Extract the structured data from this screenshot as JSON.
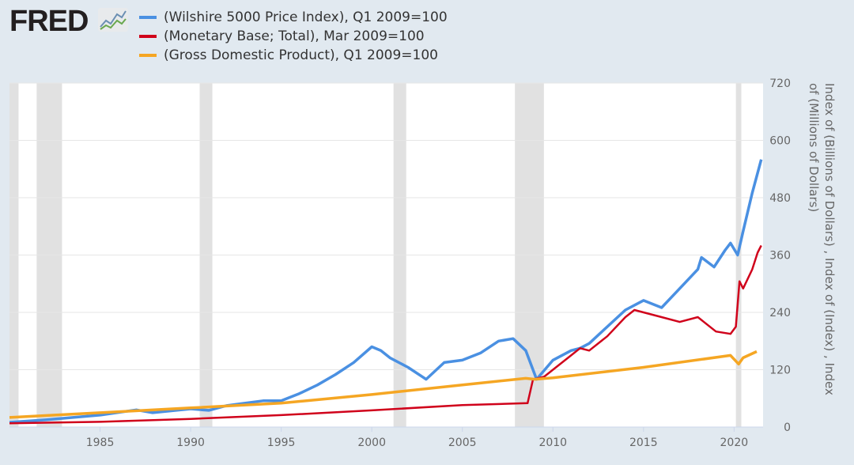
{
  "logo": "FRED",
  "chart_data": {
    "type": "line",
    "title": "",
    "ylabel": "Index of (Billions of Dollars) , Index of (Index) , Index of (Millions of Dollars)",
    "xlim": [
      1980,
      2021.6
    ],
    "ylim": [
      0,
      720
    ],
    "yticks": [
      0,
      120,
      240,
      360,
      480,
      600,
      720
    ],
    "xticks": [
      1985,
      1990,
      1995,
      2000,
      2005,
      2010,
      2015,
      2020
    ],
    "grid": true,
    "legend_position": "top-left",
    "recessions": [
      [
        1980.0,
        1980.5
      ],
      [
        1981.5,
        1982.9
      ],
      [
        1990.5,
        1991.2
      ],
      [
        2001.2,
        2001.9
      ],
      [
        2007.9,
        2009.5
      ],
      [
        2020.1,
        2020.4
      ]
    ],
    "series": [
      {
        "name": "(Wilshire 5000 Price Index), Q1 2009=100",
        "color": "#4a90e2",
        "x": [
          1980,
          1982,
          1985,
          1987,
          1987.9,
          1990,
          1991,
          1992,
          1994,
          1995,
          1996,
          1997,
          1998,
          1999,
          2000,
          2000.5,
          2001,
          2002,
          2002.8,
          2003,
          2004,
          2005,
          2006,
          2007,
          2007.8,
          2008.5,
          2009.1,
          2010,
          2011,
          2011.5,
          2012,
          2013,
          2014,
          2015,
          2016,
          2017,
          2018,
          2018.2,
          2018.9,
          2019.5,
          2019.8,
          2020.2,
          2020.5,
          2021,
          2021.5
        ],
        "y": [
          10,
          15,
          25,
          36,
          30,
          38,
          35,
          45,
          55,
          55,
          70,
          88,
          110,
          135,
          168,
          160,
          145,
          125,
          105,
          100,
          135,
          140,
          155,
          180,
          185,
          160,
          100,
          140,
          160,
          165,
          175,
          210,
          245,
          265,
          250,
          290,
          330,
          355,
          335,
          370,
          385,
          360,
          410,
          490,
          560
        ]
      },
      {
        "name": "(Monetary Base; Total), Mar 2009=100",
        "color": "#d0021b",
        "x": [
          1980,
          1985,
          1990,
          1995,
          2000,
          2005,
          2008.6,
          2008.9,
          2009.5,
          2010,
          2011,
          2011.5,
          2012,
          2013,
          2014,
          2014.5,
          2015,
          2016,
          2017,
          2018,
          2019,
          2019.8,
          2020.1,
          2020.3,
          2020.5,
          2021,
          2021.3,
          2021.5
        ],
        "y": [
          8,
          11,
          17,
          25,
          35,
          46,
          50,
          100,
          105,
          120,
          150,
          165,
          160,
          190,
          230,
          245,
          240,
          230,
          220,
          230,
          200,
          195,
          210,
          305,
          290,
          330,
          365,
          380
        ]
      },
      {
        "name": "(Gross Domestic Product), Q1 2009=100",
        "color": "#f5a623",
        "x": [
          1980,
          1985,
          1990,
          1995,
          2000,
          2005,
          2008.5,
          2009,
          2010,
          2015,
          2019.8,
          2020.25,
          2020.5,
          2021.25
        ],
        "y": [
          20,
          30,
          40,
          50,
          68,
          88,
          102,
          100,
          103,
          125,
          150,
          132,
          145,
          158
        ]
      }
    ]
  }
}
